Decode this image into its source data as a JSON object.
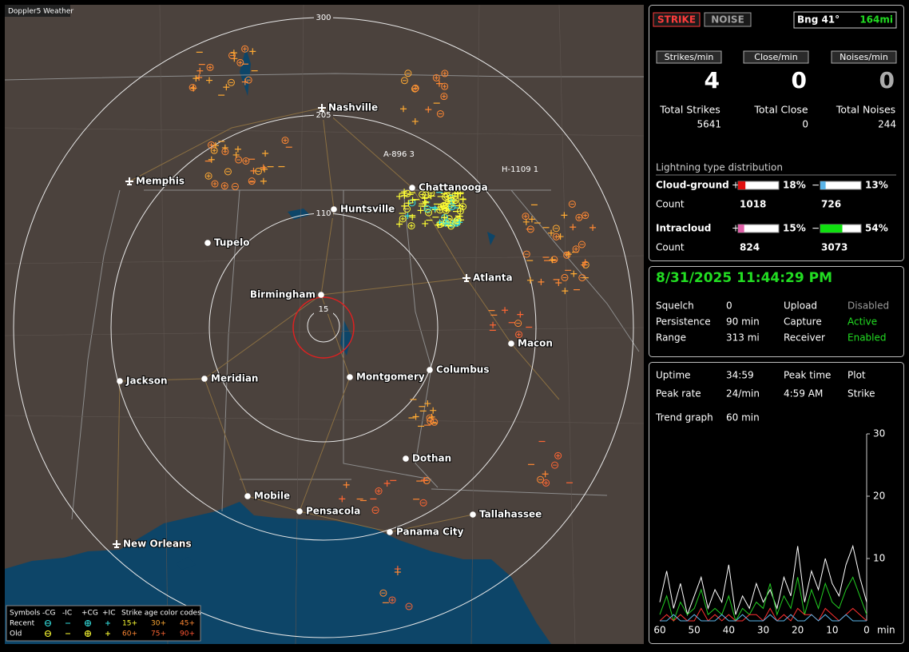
{
  "header": {
    "app_title": "Doppler5 Weather"
  },
  "map": {
    "ring_labels": [
      "15",
      "110",
      "205",
      "300"
    ],
    "cities": [
      {
        "name": "Nashville",
        "kind": "airport"
      },
      {
        "name": "Memphis",
        "kind": "airport"
      },
      {
        "name": "Chattanooga",
        "kind": "city"
      },
      {
        "name": "Huntsville",
        "kind": "city"
      },
      {
        "name": "Tupelo",
        "kind": "city"
      },
      {
        "name": "Atlanta",
        "kind": "airport"
      },
      {
        "name": "Birmingham",
        "kind": "city"
      },
      {
        "name": "Macon",
        "kind": "city"
      },
      {
        "name": "Jackson",
        "kind": "city"
      },
      {
        "name": "Meridian",
        "kind": "city"
      },
      {
        "name": "Montgomery",
        "kind": "city"
      },
      {
        "name": "Columbus",
        "kind": "city"
      },
      {
        "name": "Dothan",
        "kind": "city"
      },
      {
        "name": "Mobile",
        "kind": "city"
      },
      {
        "name": "Pensacola",
        "kind": "city"
      },
      {
        "name": "Tallahassee",
        "kind": "city"
      },
      {
        "name": "Panama City",
        "kind": "city"
      },
      {
        "name": "New Orleans",
        "kind": "airport"
      }
    ],
    "storms": [
      "A-896 3",
      "H-1109 1"
    ],
    "legend": {
      "header": [
        "Symbols",
        "-CG",
        "-IC",
        "+CG",
        "+IC",
        "Strike age color codes"
      ],
      "rows": [
        {
          "label": "Recent",
          "ages": [
            {
              "text": "15+",
              "color": "#ffff33"
            },
            {
              "text": "30+",
              "color": "#ffaa33"
            },
            {
              "text": "45+",
              "color": "#ff8833"
            }
          ],
          "color": "#33dddd"
        },
        {
          "label": "Old",
          "ages": [
            {
              "text": "60+",
              "color": "#ff8833"
            },
            {
              "text": "75+",
              "color": "#ff6633"
            },
            {
              "text": "90+",
              "color": "#ff5533"
            }
          ],
          "color": "#ffff33"
        }
      ]
    }
  },
  "status": {
    "buttons": [
      {
        "text": "STRIKE",
        "color": "#ff3b3b"
      },
      {
        "text": "NOISE",
        "color": "#a0a0a0"
      }
    ],
    "bearing": "Bng 41°",
    "distance": "164mi"
  },
  "rates": [
    {
      "label": "Strikes/min",
      "value": 4,
      "color": "#ffffff"
    },
    {
      "label": "Close/min",
      "value": 0,
      "color": "#ffffff"
    },
    {
      "label": "Noises/min",
      "value": 0,
      "color": "#aaaaaa"
    }
  ],
  "totals": [
    {
      "label": "Total Strikes",
      "value": 5641
    },
    {
      "label": "Total Close",
      "value": 0
    },
    {
      "label": "Total Noises",
      "value": 244
    }
  ],
  "distribution": {
    "title": "Lightning type distribution",
    "pos_sign": "+",
    "neg_sign": "−",
    "count_label": "Count",
    "rows": [
      {
        "name": "Cloud-ground",
        "pos": {
          "value": 18,
          "label": "18%"
        },
        "neg": {
          "value": 13,
          "label": "13%"
        },
        "pos_color": "#e01010",
        "neg_color": "#5ab4e8",
        "pos_count": 1018,
        "neg_count": 726
      },
      {
        "name": "Intracloud",
        "pos": {
          "value": 15,
          "label": "15%"
        },
        "neg": {
          "value": 54,
          "label": "54%"
        },
        "pos_color": "#e060a8",
        "neg_color": "#10e010",
        "pos_count": 824,
        "neg_count": 3073
      }
    ]
  },
  "datetime": "8/31/2025 11:44:29 PM",
  "settings": [
    [
      {
        "text": "Squelch"
      },
      {
        "text": "0"
      },
      {
        "text": "Upload"
      },
      {
        "text": "Disabled",
        "color": "#9a9a9a"
      }
    ],
    [
      {
        "text": "Persistence"
      },
      {
        "text": "90 min"
      },
      {
        "text": "Capture"
      },
      {
        "text": "Active",
        "color": "#22dd22"
      }
    ],
    [
      {
        "text": "Range"
      },
      {
        "text": "313 mi"
      },
      {
        "text": "Receiver"
      },
      {
        "text": "Enabled",
        "color": "#22dd22"
      }
    ]
  ],
  "uptime": [
    [
      {
        "text": "Uptime"
      },
      {
        "text": "34:59"
      },
      {
        "text": "Peak time"
      },
      {
        "text": "Plot"
      }
    ],
    [
      {
        "text": "Peak rate"
      },
      {
        "text": "24/min"
      },
      {
        "text": "4:59 AM"
      },
      {
        "text": "Strike"
      }
    ]
  ],
  "trend": {
    "label": "Trend graph",
    "span": "60 min",
    "x_unit": "min",
    "ylim": [
      0,
      30
    ],
    "yticks": [
      10,
      20,
      30
    ],
    "xlim": [
      60,
      0
    ],
    "xticks": [
      60,
      50,
      40,
      30,
      20,
      10,
      0
    ],
    "x": [
      60,
      58,
      56,
      54,
      52,
      50,
      48,
      46,
      44,
      42,
      40,
      38,
      36,
      34,
      32,
      30,
      28,
      26,
      24,
      22,
      20,
      18,
      16,
      14,
      12,
      10,
      8,
      6,
      4,
      2,
      0
    ],
    "series": [
      {
        "color": "#ffffff",
        "values": [
          3,
          8,
          2,
          6,
          1,
          4,
          7,
          2,
          5,
          3,
          9,
          1,
          4,
          2,
          6,
          3,
          5,
          2,
          7,
          4,
          12,
          3,
          8,
          5,
          10,
          6,
          4,
          9,
          12,
          7,
          3
        ]
      },
      {
        "color": "#22cc22",
        "values": [
          1,
          4,
          0,
          3,
          1,
          2,
          5,
          1,
          2,
          1,
          4,
          0,
          2,
          1,
          3,
          2,
          6,
          1,
          4,
          2,
          7,
          1,
          5,
          2,
          6,
          3,
          2,
          5,
          7,
          4,
          1
        ]
      },
      {
        "color": "#ff3030",
        "values": [
          0,
          1,
          0,
          1,
          0,
          0,
          2,
          0,
          1,
          0,
          1,
          0,
          0,
          1,
          1,
          0,
          2,
          0,
          1,
          0,
          2,
          1,
          1,
          0,
          2,
          1,
          0,
          1,
          2,
          1,
          0
        ]
      },
      {
        "color": "#5ab4e8",
        "values": [
          0,
          0,
          1,
          0,
          0,
          1,
          0,
          0,
          0,
          1,
          0,
          0,
          1,
          0,
          0,
          0,
          1,
          0,
          0,
          1,
          0,
          0,
          1,
          0,
          1,
          0,
          0,
          1,
          0,
          0,
          0
        ]
      }
    ]
  }
}
